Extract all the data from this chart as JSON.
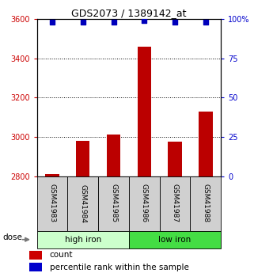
{
  "title": "GDS2073 / 1389142_at",
  "samples": [
    "GSM41983",
    "GSM41984",
    "GSM41985",
    "GSM41986",
    "GSM41987",
    "GSM41988"
  ],
  "counts": [
    2810,
    2980,
    3010,
    3460,
    2975,
    3130
  ],
  "percentiles": [
    98,
    98,
    98,
    99,
    98,
    98
  ],
  "group_colors": [
    "#ccffcc",
    "#44dd44"
  ],
  "ylim_left": [
    2800,
    3600
  ],
  "ylim_right": [
    0,
    100
  ],
  "yticks_left": [
    2800,
    3000,
    3200,
    3400,
    3600
  ],
  "yticks_right": [
    0,
    25,
    50,
    75,
    100
  ],
  "bar_color": "#bb0000",
  "dot_color": "#0000bb",
  "left_tick_color": "#cc0000",
  "right_tick_color": "#0000cc",
  "legend_count_color": "#cc0000",
  "legend_pct_color": "#0000cc",
  "sample_box_color": "#d0d0d0",
  "high_iron_color": "#ccffcc",
  "low_iron_color": "#44dd44"
}
